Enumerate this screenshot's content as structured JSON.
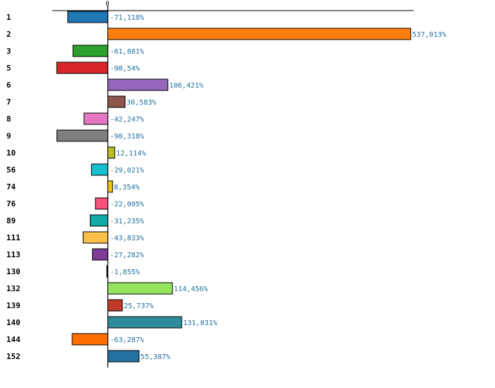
{
  "chart_data": {
    "type": "bar",
    "orientation": "horizontal",
    "title": "",
    "xlabel": "",
    "ylabel": "",
    "x_ticks": [
      "0"
    ],
    "xlim": [
      -100,
      560
    ],
    "grid": false,
    "legend": "none",
    "categories": [
      "1",
      "2",
      "3",
      "5",
      "6",
      "7",
      "8",
      "9",
      "10",
      "56",
      "74",
      "76",
      "89",
      "111",
      "113",
      "130",
      "132",
      "139",
      "140",
      "144",
      "152"
    ],
    "values": [
      -71.118,
      537.013,
      -61.881,
      -90.54,
      106.421,
      30.583,
      -42.247,
      -90.318,
      12.114,
      -29.021,
      8.354,
      -22.005,
      -31.235,
      -43.833,
      -27.282,
      -1.855,
      114.456,
      25.737,
      131.031,
      -63.287,
      55.387
    ],
    "value_labels": [
      "-71,118%",
      "537,013%",
      "-61,881%",
      "-90,54%",
      "106,421%",
      "30,583%",
      "-42,247%",
      "-90,318%",
      "12,114%",
      "-29,021%",
      "8,354%",
      "-22,005%",
      "-31,235%",
      "-43,833%",
      "-27,282%",
      "-1,855%",
      "114,456%",
      "25,737%",
      "131,031%",
      "-63,287%",
      "55,387%"
    ],
    "colors": [
      "#1f77b4",
      "#ff7f0e",
      "#2ca02c",
      "#d62728",
      "#9467bd",
      "#8c564b",
      "#e377c2",
      "#7f7f7f",
      "#bcbd22",
      "#17becf",
      "#f2c40f",
      "#f7507c",
      "#11aaa5",
      "#fbbf4a",
      "#7d3c98",
      "#2a2a2a",
      "#93e55b",
      "#c0392b",
      "#2e8b9a",
      "#ff6f00",
      "#2471a3"
    ]
  }
}
